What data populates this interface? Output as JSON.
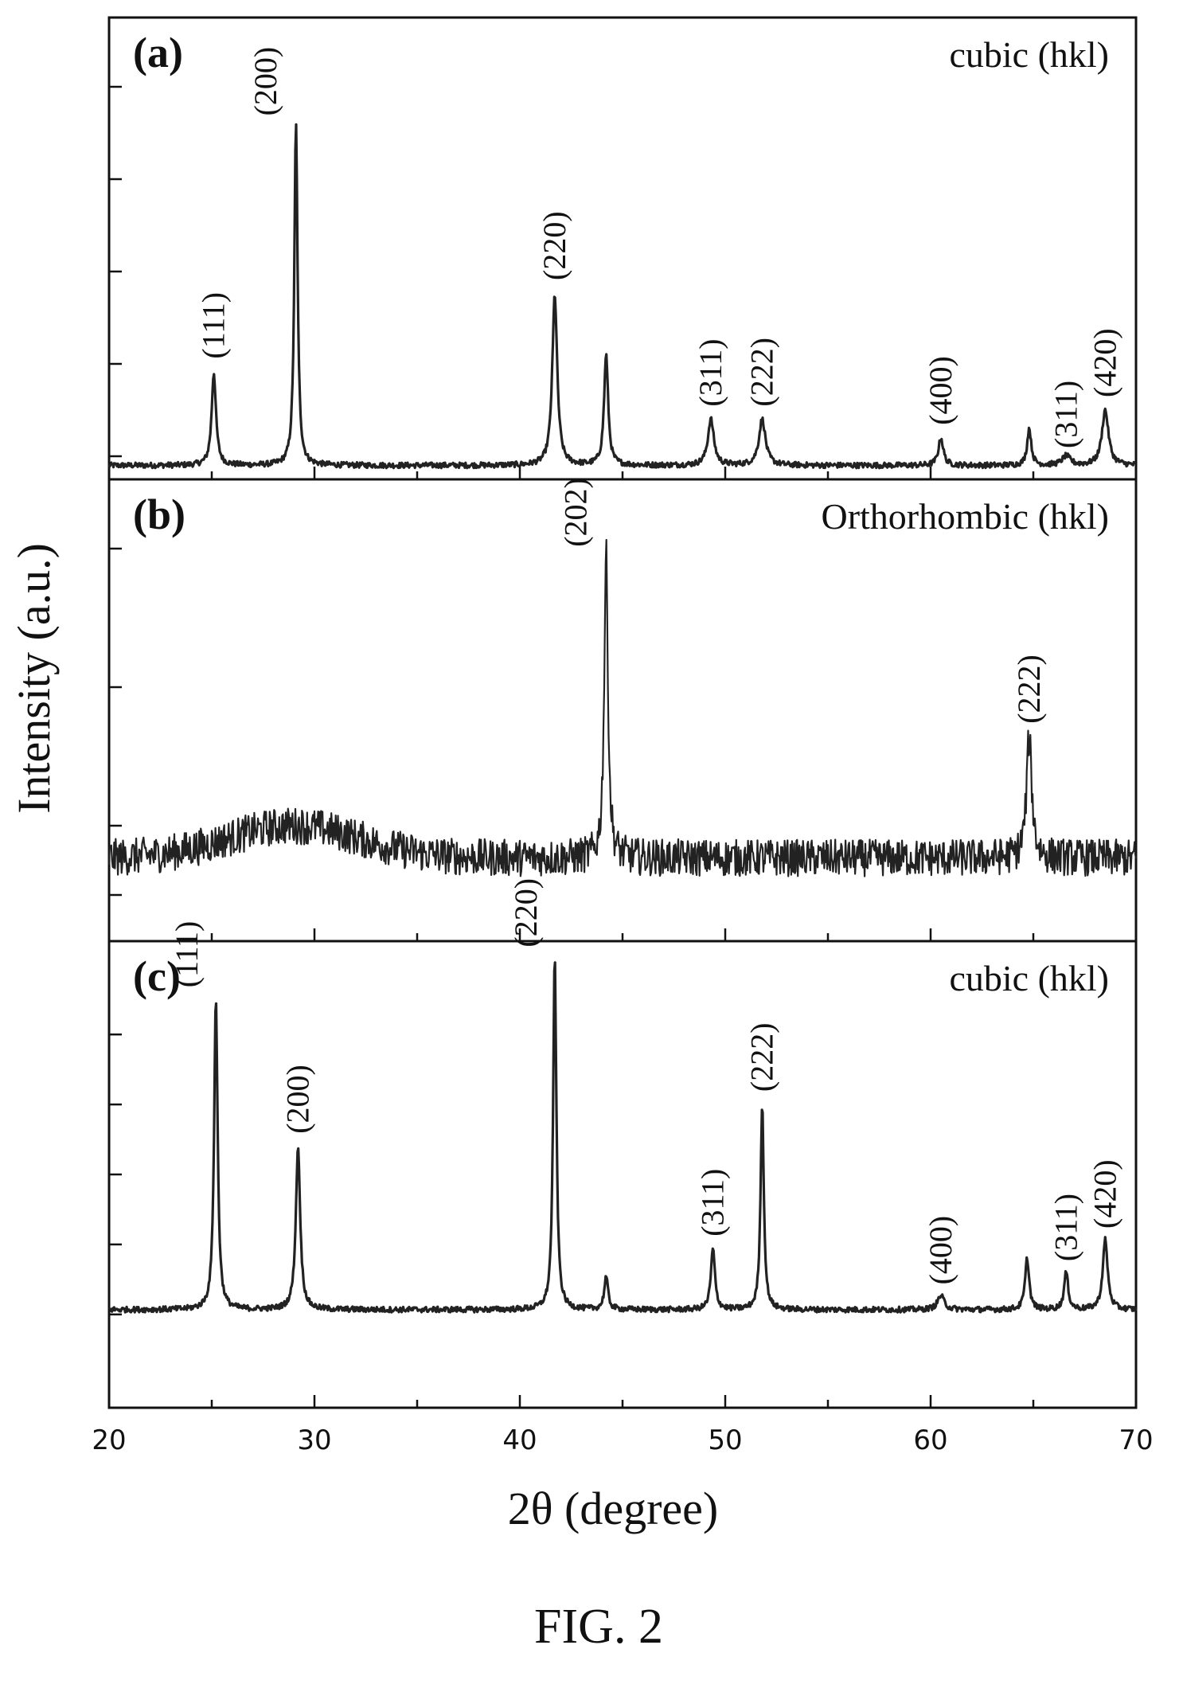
{
  "figure": {
    "caption": "FIG. 2",
    "xlabel": "2θ (degree)",
    "ylabel": "Intensity (a.u.)"
  },
  "chart_data": [
    {
      "type": "line",
      "panel": "(a)",
      "phase_label": "cubic (hkl)",
      "xlabel": "2θ (degree)",
      "ylabel": "Intensity (a.u.)",
      "xlim": [
        20,
        70
      ],
      "ylim": [
        0,
        1
      ],
      "x_ticks": [
        20,
        30,
        40,
        50,
        60,
        70
      ],
      "y_ticks": [
        0.05,
        0.25,
        0.45,
        0.65,
        0.85
      ],
      "grid": false,
      "baseline": 0.03,
      "noise": 0.006,
      "peaks": [
        {
          "x": 25.1,
          "height": 0.2,
          "width": 0.16,
          "label": "(111)"
        },
        {
          "x": 29.1,
          "height": 0.74,
          "width": 0.12,
          "label": "(200)"
        },
        {
          "x": 41.7,
          "height": 0.37,
          "width": 0.18,
          "label": "(220)"
        },
        {
          "x": 44.2,
          "height": 0.24,
          "width": 0.15,
          "label": ""
        },
        {
          "x": 49.3,
          "height": 0.1,
          "width": 0.22,
          "label": "(311)"
        },
        {
          "x": 51.8,
          "height": 0.1,
          "width": 0.24,
          "label": "(222)"
        },
        {
          "x": 60.5,
          "height": 0.06,
          "width": 0.18,
          "label": "(400)"
        },
        {
          "x": 64.8,
          "height": 0.08,
          "width": 0.15,
          "label": ""
        },
        {
          "x": 66.6,
          "height": 0.02,
          "width": 0.3,
          "label": "(311)"
        },
        {
          "x": 68.5,
          "height": 0.12,
          "width": 0.24,
          "label": "(420)"
        }
      ]
    },
    {
      "type": "line",
      "panel": "(b)",
      "phase_label": "Orthorhombic (hkl)",
      "xlabel": "2θ (degree)",
      "ylabel": "Intensity (a.u.)",
      "xlim": [
        20,
        70
      ],
      "ylim": [
        0,
        1
      ],
      "x_ticks": [
        20,
        30,
        40,
        50,
        60,
        70
      ],
      "y_ticks": [
        0.1,
        0.25,
        0.55,
        0.85
      ],
      "grid": false,
      "baseline": 0.18,
      "noise": 0.04,
      "hump": {
        "center": 29.0,
        "height": 0.07,
        "width": 4.5
      },
      "peaks": [
        {
          "x": 44.2,
          "height": 0.66,
          "width": 0.14,
          "label": "(202)"
        },
        {
          "x": 64.8,
          "height": 0.26,
          "width": 0.2,
          "label": "(222)"
        }
      ]
    },
    {
      "type": "line",
      "panel": "(c)",
      "phase_label": "cubic (hkl)",
      "xlabel": "2θ (degree)",
      "ylabel": "Intensity (a.u.)",
      "xlim": [
        20,
        70
      ],
      "ylim": [
        0,
        1
      ],
      "x_ticks": [
        20,
        30,
        40,
        50,
        60,
        70
      ],
      "y_ticks": [
        0.2,
        0.35,
        0.5,
        0.65,
        0.8
      ],
      "grid": false,
      "baseline": 0.21,
      "noise": 0.006,
      "peaks": [
        {
          "x": 25.2,
          "height": 0.67,
          "width": 0.13,
          "label": "(111)"
        },
        {
          "x": 29.2,
          "height": 0.35,
          "width": 0.16,
          "label": "(200)"
        },
        {
          "x": 41.7,
          "height": 0.76,
          "width": 0.12,
          "label": "(220)"
        },
        {
          "x": 44.2,
          "height": 0.07,
          "width": 0.14,
          "label": ""
        },
        {
          "x": 49.4,
          "height": 0.13,
          "width": 0.15,
          "label": "(311)"
        },
        {
          "x": 51.8,
          "height": 0.44,
          "width": 0.12,
          "label": "(222)"
        },
        {
          "x": 60.5,
          "height": 0.03,
          "width": 0.25,
          "label": "(400)"
        },
        {
          "x": 64.7,
          "height": 0.11,
          "width": 0.15,
          "label": ""
        },
        {
          "x": 66.6,
          "height": 0.08,
          "width": 0.15,
          "label": "(311)"
        },
        {
          "x": 68.5,
          "height": 0.15,
          "width": 0.18,
          "label": "(420)"
        }
      ]
    }
  ]
}
